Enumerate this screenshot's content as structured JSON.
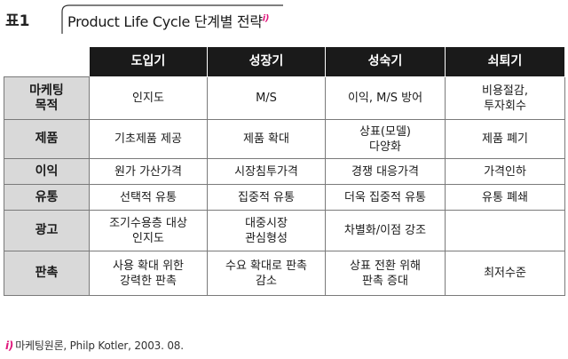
{
  "header": {
    "label": "표1",
    "title": "Product Life Cycle 단계별 전략",
    "title_note_mark": "i)"
  },
  "table": {
    "columns": [
      "도입기",
      "성장기",
      "성숙기",
      "쇠퇴기"
    ],
    "rows": [
      {
        "label": [
          "마케팅",
          "목적"
        ],
        "cells": [
          [
            "인지도"
          ],
          [
            "M/S"
          ],
          [
            "이익, M/S 방어"
          ],
          [
            "비용절감,",
            "투자회수"
          ]
        ]
      },
      {
        "label": [
          "제품"
        ],
        "cells": [
          [
            "기초제품 제공"
          ],
          [
            "제품 확대"
          ],
          [
            "상표(모델)",
            "다양화"
          ],
          [
            "제품 폐기"
          ]
        ]
      },
      {
        "label": [
          "이익"
        ],
        "cells": [
          [
            "원가 가산가격"
          ],
          [
            "시장침투가격"
          ],
          [
            "경쟁 대응가격"
          ],
          [
            "가격인하"
          ]
        ]
      },
      {
        "label": [
          "유통"
        ],
        "cells": [
          [
            "선택적 유통"
          ],
          [
            "집중적 유통"
          ],
          [
            "더욱 집중적 유통"
          ],
          [
            "유통 폐쇄"
          ]
        ]
      },
      {
        "label": [
          "광고"
        ],
        "cells": [
          [
            "조기수용층 대상",
            "인지도"
          ],
          [
            "대중시장",
            "관심형성"
          ],
          [
            "차별화/이점 강조"
          ],
          [
            ""
          ]
        ]
      },
      {
        "label": [
          "판촉"
        ],
        "cells": [
          [
            "사용 확대 위한",
            "강력한 판촉"
          ],
          [
            "수요 확대로 판촉",
            "감소"
          ],
          [
            "상표 전환 위해",
            "판촉 증대"
          ],
          [
            "최저수준"
          ]
        ]
      }
    ]
  },
  "footnote": {
    "mark": "i)",
    "text": "마케팅원론, Philp Kotler, 2003. 08."
  },
  "colors": {
    "header_bg": "#1a1a1a",
    "row_header_bg": "#d9d9d9",
    "accent": "#e0197d"
  }
}
